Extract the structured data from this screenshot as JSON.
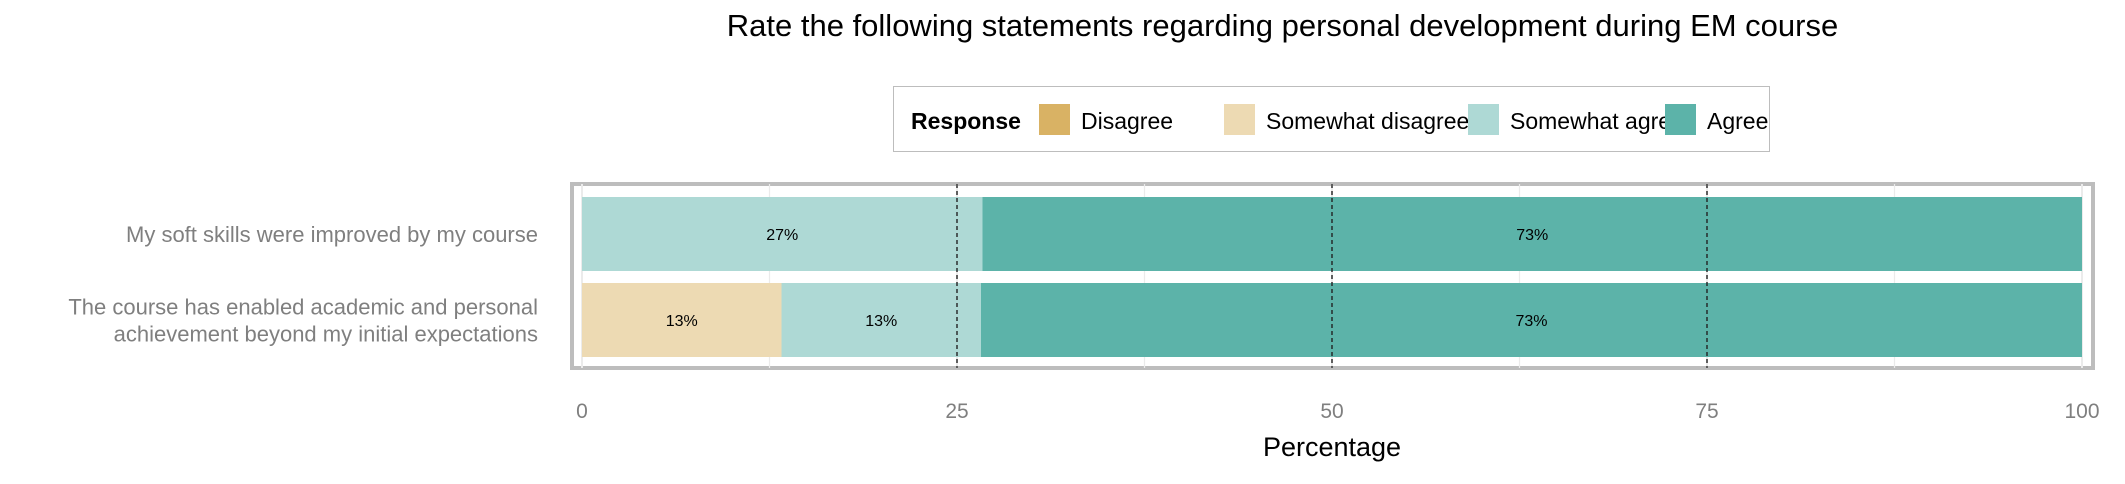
{
  "chart_data": {
    "type": "bar",
    "orientation": "horizontal",
    "stacked": true,
    "title": "Rate the following statements regarding personal development during EM course",
    "xlabel": "Percentage",
    "ylabel": "",
    "xlim": [
      0,
      100
    ],
    "xticks": [
      "0",
      "25",
      "50",
      "75",
      "100"
    ],
    "categories": [
      [
        "My soft skills were improved by my course"
      ],
      [
        "The course has enabled academic and personal",
        "achievement beyond my initial expectations"
      ]
    ],
    "legend_title": "Response",
    "legend_position": "top",
    "series": [
      {
        "name": "Disagree",
        "color": "#d9b264",
        "values": [
          0,
          0
        ],
        "labels": [
          "",
          ""
        ]
      },
      {
        "name": "Somewhat disagree",
        "color": "#eddab3",
        "values": [
          0,
          13.3
        ],
        "labels": [
          "",
          "13%"
        ]
      },
      {
        "name": "Somewhat agree",
        "color": "#aed9d5",
        "values": [
          26.7,
          13.3
        ],
        "labels": [
          "27%",
          "13%"
        ]
      },
      {
        "name": "Agree",
        "color": "#5cb3a9",
        "values": [
          73.3,
          73.4
        ],
        "labels": [
          "73%",
          "73%"
        ]
      }
    ],
    "reference_lines": [
      25,
      50,
      75
    ],
    "grid": true
  }
}
